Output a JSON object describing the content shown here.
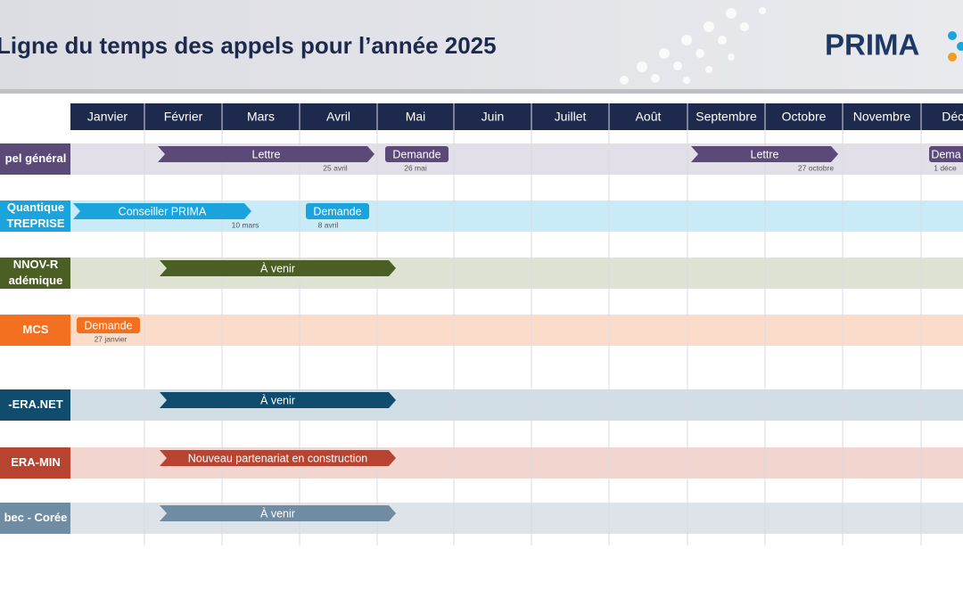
{
  "header": {
    "title": "Ligne du temps des appels pour l’année 2025",
    "logo": "PRIMA"
  },
  "months": [
    "Janvier",
    "Février",
    "Mars",
    "Avril",
    "Mai",
    "Juin",
    "Juillet",
    "Août",
    "Septembre",
    "Octobre",
    "Novembre",
    "Décen"
  ],
  "rows": [
    {
      "label": [
        "pel général"
      ],
      "items": [
        {
          "kind": "arrow",
          "label": "Lettre",
          "date": "25 avril"
        },
        {
          "kind": "tag",
          "label": "Demande",
          "date": "26 mai"
        },
        {
          "kind": "arrow",
          "label": "Lettre",
          "date": "27 octobre"
        },
        {
          "kind": "tag",
          "label": "Dema",
          "date": "1 déce"
        }
      ]
    },
    {
      "label": [
        "Quantique",
        "TREPRISE"
      ],
      "items": [
        {
          "kind": "arrow",
          "label": "Conseiller PRIMA",
          "date": "10 mars"
        },
        {
          "kind": "tag",
          "label": "Demande",
          "date": "8 avril"
        }
      ]
    },
    {
      "label": [
        "NNOV-R",
        "adémique"
      ],
      "items": [
        {
          "kind": "arrow",
          "label": "À venir"
        }
      ]
    },
    {
      "label": [
        "MCS"
      ],
      "items": [
        {
          "kind": "tag",
          "label": "Demande",
          "date": "27 janvier"
        }
      ]
    },
    {
      "label": [
        "-ERA.NET"
      ],
      "items": [
        {
          "kind": "arrow",
          "label": "À venir"
        }
      ]
    },
    {
      "label": [
        "ERA-MIN"
      ],
      "items": [
        {
          "kind": "arrow",
          "label": "Nouveau partenariat en construction"
        }
      ]
    },
    {
      "label": [
        "bec - Corée"
      ],
      "items": [
        {
          "kind": "arrow",
          "label": "À venir"
        }
      ]
    }
  ]
}
